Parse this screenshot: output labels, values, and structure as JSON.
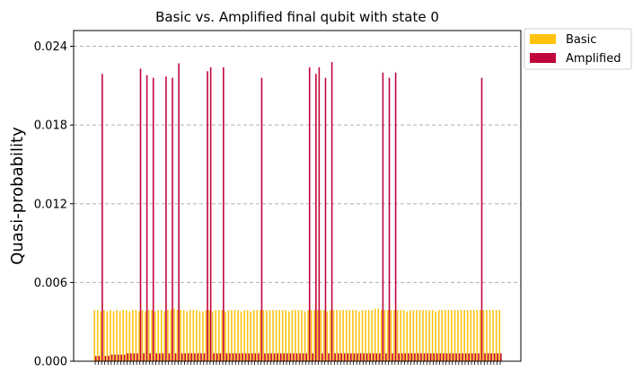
{
  "chart_data": {
    "type": "bar",
    "title": "Basic vs. Amplified final qubit with state 0",
    "xlabel": "",
    "ylabel": "Quasi-probability",
    "ylim": [
      0,
      0.0252
    ],
    "yticks": [
      0.0,
      0.006,
      0.012,
      0.018,
      0.024
    ],
    "ytick_labels": [
      "0.000",
      "0.006",
      "0.012",
      "0.018",
      "0.024"
    ],
    "grid": "horizontal dashed",
    "legend_position": "upper right, outside plot",
    "num_categories": 128,
    "series": [
      {
        "name": "Basic",
        "color": "#FFC20E",
        "values": [
          0.0039,
          0.0039,
          0.0038,
          0.0039,
          0.0038,
          0.0039,
          0.0038,
          0.0039,
          0.0038,
          0.0039,
          0.0039,
          0.0038,
          0.0039,
          0.0039,
          0.0038,
          0.0039,
          0.0038,
          0.0039,
          0.0039,
          0.0038,
          0.0039,
          0.0039,
          0.0038,
          0.0039,
          0.0039,
          0.004,
          0.0039,
          0.0039,
          0.0039,
          0.0038,
          0.0039,
          0.0039,
          0.0039,
          0.0038,
          0.0038,
          0.0039,
          0.0039,
          0.0038,
          0.0039,
          0.0039,
          0.0039,
          0.0038,
          0.0039,
          0.0039,
          0.0039,
          0.0039,
          0.0038,
          0.0039,
          0.0039,
          0.0038,
          0.0039,
          0.0039,
          0.0039,
          0.0039,
          0.0039,
          0.0039,
          0.0039,
          0.0039,
          0.0039,
          0.0039,
          0.0039,
          0.0038,
          0.0039,
          0.0039,
          0.0039,
          0.0039,
          0.0038,
          0.0039,
          0.0039,
          0.0039,
          0.0039,
          0.0039,
          0.0039,
          0.0038,
          0.0039,
          0.0039,
          0.0039,
          0.0039,
          0.0039,
          0.0039,
          0.0039,
          0.0039,
          0.0039,
          0.0038,
          0.0039,
          0.0039,
          0.0039,
          0.0039,
          0.004,
          0.004,
          0.0039,
          0.0039,
          0.0039,
          0.0039,
          0.0039,
          0.0039,
          0.0039,
          0.0039,
          0.0038,
          0.0039,
          0.0039,
          0.0039,
          0.0039,
          0.0039,
          0.0039,
          0.0039,
          0.0039,
          0.0038,
          0.0039,
          0.0039,
          0.0039,
          0.0039,
          0.0039,
          0.0039,
          0.0039,
          0.0039,
          0.0039,
          0.0039,
          0.0039,
          0.0039,
          0.0039,
          0.0039,
          0.0039,
          0.0039,
          0.0039,
          0.0039,
          0.0039,
          0.0039
        ]
      },
      {
        "name": "Amplified",
        "color": "#C0063B",
        "values": [
          0.0004,
          0.0004,
          0.0219,
          0.0004,
          0.0004,
          0.0005,
          0.0005,
          0.0005,
          0.0005,
          0.0005,
          0.0006,
          0.0006,
          0.0006,
          0.0006,
          0.0223,
          0.0006,
          0.0218,
          0.0006,
          0.0216,
          0.0006,
          0.0006,
          0.0006,
          0.0217,
          0.0006,
          0.0216,
          0.0006,
          0.0227,
          0.0006,
          0.0006,
          0.0006,
          0.0006,
          0.0006,
          0.0006,
          0.0006,
          0.0006,
          0.0221,
          0.0224,
          0.0006,
          0.0006,
          0.0006,
          0.0224,
          0.0006,
          0.0006,
          0.0006,
          0.0006,
          0.0006,
          0.0006,
          0.0006,
          0.0006,
          0.0006,
          0.0006,
          0.0006,
          0.0216,
          0.0006,
          0.0006,
          0.0006,
          0.0006,
          0.0006,
          0.0006,
          0.0006,
          0.0006,
          0.0006,
          0.0006,
          0.0006,
          0.0006,
          0.0006,
          0.0006,
          0.0224,
          0.0006,
          0.0219,
          0.0224,
          0.0006,
          0.0216,
          0.0006,
          0.0228,
          0.0006,
          0.0006,
          0.0006,
          0.0006,
          0.0006,
          0.0006,
          0.0006,
          0.0006,
          0.0006,
          0.0006,
          0.0006,
          0.0006,
          0.0006,
          0.0006,
          0.0006,
          0.022,
          0.0006,
          0.0216,
          0.0006,
          0.022,
          0.0006,
          0.0006,
          0.0006,
          0.0006,
          0.0006,
          0.0006,
          0.0006,
          0.0006,
          0.0006,
          0.0006,
          0.0006,
          0.0006,
          0.0006,
          0.0006,
          0.0006,
          0.0006,
          0.0006,
          0.0006,
          0.0006,
          0.0006,
          0.0006,
          0.0006,
          0.0006,
          0.0006,
          0.0006,
          0.0006,
          0.0216,
          0.0006,
          0.0006,
          0.0006,
          0.0006,
          0.0006,
          0.0006
        ]
      }
    ]
  }
}
